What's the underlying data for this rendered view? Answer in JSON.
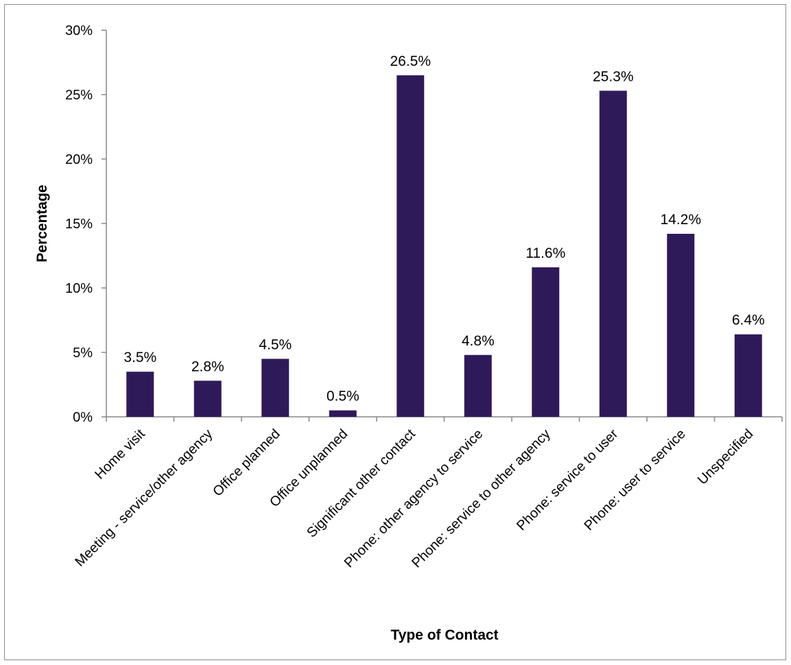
{
  "chart_data": {
    "type": "bar",
    "title": "",
    "xlabel": "Type of Contact",
    "ylabel": "Percentage",
    "ylim": [
      0,
      30
    ],
    "yticks": [
      "0%",
      "5%",
      "10%",
      "15%",
      "20%",
      "25%",
      "30%"
    ],
    "ytick_values": [
      0,
      5,
      10,
      15,
      20,
      25,
      30
    ],
    "value_unit": "%",
    "grid": false,
    "legend": "none",
    "categories": [
      "Home visit",
      "Meeting - service/other agency",
      "Office planned",
      "Office unplanned",
      "Significant other contact",
      "Phone: other agency to service",
      "Phone: service to other agency",
      "Phone: service to user",
      "Phone: user to service",
      "Unspecified"
    ],
    "values": [
      3.5,
      2.8,
      4.5,
      0.5,
      26.5,
      4.8,
      11.6,
      25.3,
      14.2,
      6.4
    ],
    "data_labels": [
      "3.5%",
      "2.8%",
      "4.5%",
      "0.5%",
      "26.5%",
      "4.8%",
      "11.6%",
      "25.3%",
      "14.2%",
      "6.4%"
    ],
    "colors": {
      "bar": "#2f1a59",
      "axis": "#868686",
      "frame": "#8c8c8c"
    }
  }
}
